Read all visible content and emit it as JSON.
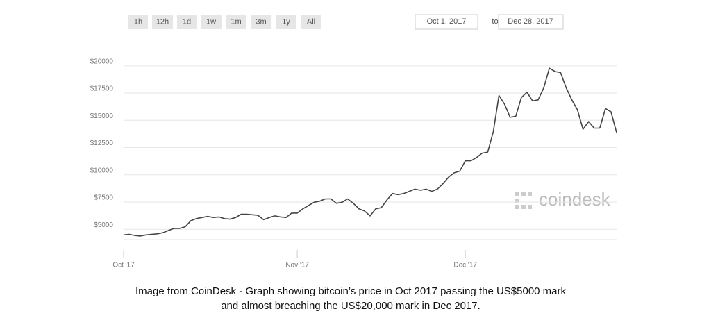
{
  "toolbar": {
    "buttons": [
      "1h",
      "12h",
      "1d",
      "1w",
      "1m",
      "3m",
      "1y",
      "All"
    ],
    "date_from": "Oct 1, 2017",
    "date_sep": "to",
    "date_to": "Dec 28, 2017"
  },
  "watermark": "coindesk",
  "caption": [
    "Image from CoinDesk - Graph showing bitcoin’s price in Oct 2017 passing the US$5000 mark",
    "and almost breaching the US$20,000 mark in Dec 2017."
  ],
  "chart_data": {
    "type": "line",
    "color": "#444444",
    "grid": true,
    "categories": [
      "Oct '17",
      null,
      null,
      null,
      null,
      null,
      null,
      null,
      null,
      null,
      null,
      null,
      null,
      null,
      null,
      null,
      null,
      null,
      null,
      null,
      null,
      null,
      null,
      null,
      null,
      null,
      null,
      null,
      null,
      null,
      null,
      "Nov '17",
      null,
      null,
      null,
      null,
      null,
      null,
      null,
      null,
      null,
      null,
      null,
      null,
      null,
      null,
      null,
      null,
      null,
      null,
      null,
      null,
      null,
      null,
      null,
      null,
      null,
      null,
      null,
      null,
      null,
      "Dec '17",
      null,
      null,
      null,
      null,
      null,
      null,
      null,
      null,
      null,
      null,
      null,
      null,
      null,
      null,
      null,
      null,
      null,
      null,
      null,
      null,
      null,
      null,
      null,
      null,
      null,
      null,
      null
    ],
    "values": [
      4100,
      4150,
      4050,
      4000,
      4100,
      4150,
      4200,
      4300,
      4500,
      4700,
      4700,
      4850,
      5400,
      5600,
      5700,
      5800,
      5700,
      5750,
      5600,
      5550,
      5700,
      6000,
      6000,
      5950,
      5900,
      5500,
      5700,
      5850,
      5750,
      5700,
      6100,
      6100,
      6500,
      6800,
      7100,
      7200,
      7400,
      7400,
      7000,
      7100,
      7400,
      7000,
      6500,
      6300,
      5850,
      6500,
      6600,
      7300,
      7900,
      7800,
      7900,
      8100,
      8300,
      8200,
      8300,
      8100,
      8300,
      8800,
      9400,
      9800,
      9950,
      10900,
      10900,
      11200,
      11600,
      11700,
      13600,
      16900,
      16100,
      14900,
      15000,
      16700,
      17200,
      16400,
      16500,
      17600,
      19400,
      19100,
      19000,
      17600,
      16500,
      15600,
      13800,
      14500,
      13900,
      13900,
      15700,
      15400,
      13500
    ],
    "ylim": [
      2400,
      21200
    ],
    "yticks": [
      {
        "value": 5000,
        "label": "$5000"
      },
      {
        "value": 7500,
        "label": "$7500"
      },
      {
        "value": 10000,
        "label": "$10000"
      },
      {
        "value": 12500,
        "label": "$12500"
      },
      {
        "value": 15000,
        "label": "$15000"
      },
      {
        "value": 17500,
        "label": "$17500"
      },
      {
        "value": 20000,
        "label": "$20000"
      }
    ]
  }
}
